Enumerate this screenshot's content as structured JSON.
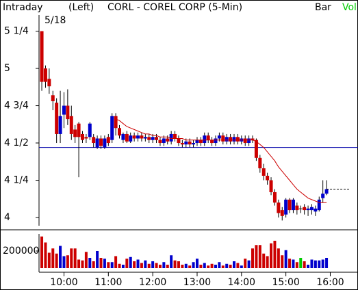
{
  "chart_data": {
    "type": "candlestick",
    "title": "CORL - COREL CORP (5-Min)",
    "header": {
      "period": "Intraday",
      "axis_side": "(Left)",
      "chart_style": "Bar",
      "volume_label": "Vol"
    },
    "date_label": "5/18",
    "up_color": "#0000cc",
    "down_color": "#cc0000",
    "flat_color": "#00cc00",
    "xlim": [
      -0.75,
      85.5
    ],
    "xticks": [
      {
        "value": 6,
        "label": "10:00"
      },
      {
        "value": 18,
        "label": "11:00"
      },
      {
        "value": 30,
        "label": "12:00"
      },
      {
        "value": 42,
        "label": "13:00"
      },
      {
        "value": 54,
        "label": "14:00"
      },
      {
        "value": 66,
        "label": "15:00"
      },
      {
        "value": 78,
        "label": "16:00"
      }
    ],
    "ylim": [
      3.945,
      5.358
    ],
    "yticks": [
      {
        "value": 5.25,
        "label": "5 1/4"
      },
      5,
      {
        "value": 4.75,
        "label": "4 3/4"
      },
      {
        "value": 4.5,
        "label": "4 1/2"
      },
      {
        "value": 4.25,
        "label": "4 1/4"
      },
      4
    ],
    "open": [
      5.25,
      5.0,
      4.93,
      4.82,
      4.77,
      4.56,
      4.69,
      4.75,
      4.68,
      4.59,
      4.63,
      4.56,
      4.54,
      4.54,
      4.54,
      4.47,
      4.53,
      4.47,
      4.54,
      4.52,
      4.68,
      4.6,
      4.52,
      4.56,
      4.51,
      4.55,
      4.53,
      4.55,
      4.53,
      4.54,
      4.52,
      4.54,
      4.52,
      4.5,
      4.53,
      4.51,
      4.56,
      4.53,
      4.5,
      4.49,
      4.51,
      4.49,
      4.5,
      4.52,
      4.5,
      4.55,
      4.52,
      4.5,
      4.53,
      4.55,
      4.51,
      4.54,
      4.51,
      4.54,
      4.51,
      4.53,
      4.5,
      4.53,
      4.52,
      4.4,
      4.33,
      4.28,
      4.25,
      4.17,
      4.1,
      4.05,
      4.02,
      4.12,
      4.05,
      4.08,
      4.06,
      4.07,
      4.05,
      4.05,
      4.04,
      4.05,
      4.13,
      4.16
    ],
    "high": [
      5.25,
      5.02,
      5.0,
      4.85,
      4.8,
      4.85,
      4.84,
      4.86,
      4.75,
      4.62,
      4.64,
      4.58,
      4.56,
      4.64,
      4.56,
      4.55,
      4.55,
      4.55,
      4.56,
      4.7,
      4.7,
      4.62,
      4.57,
      4.58,
      4.57,
      4.57,
      4.57,
      4.57,
      4.56,
      4.56,
      4.56,
      4.56,
      4.54,
      4.55,
      4.55,
      4.58,
      4.58,
      4.55,
      4.52,
      4.53,
      4.53,
      4.52,
      4.54,
      4.54,
      4.57,
      4.57,
      4.54,
      4.55,
      4.57,
      4.57,
      4.56,
      4.56,
      4.56,
      4.56,
      4.55,
      4.55,
      4.55,
      4.55,
      4.53,
      4.42,
      4.36,
      4.3,
      4.27,
      4.19,
      4.12,
      4.07,
      4.13,
      4.13,
      4.13,
      4.1,
      4.08,
      4.09,
      4.08,
      4.09,
      4.08,
      4.14,
      4.25,
      4.25
    ],
    "low": [
      4.85,
      4.87,
      4.83,
      4.72,
      4.5,
      4.5,
      4.6,
      4.62,
      4.52,
      4.5,
      4.27,
      4.5,
      4.5,
      4.52,
      4.47,
      4.46,
      4.46,
      4.46,
      4.48,
      4.5,
      4.55,
      4.53,
      4.5,
      4.5,
      4.5,
      4.51,
      4.51,
      4.51,
      4.51,
      4.5,
      4.5,
      4.5,
      4.48,
      4.48,
      4.49,
      4.49,
      4.51,
      4.48,
      4.47,
      4.47,
      4.47,
      4.47,
      4.48,
      4.48,
      4.48,
      4.5,
      4.48,
      4.48,
      4.51,
      4.49,
      4.49,
      4.49,
      4.49,
      4.49,
      4.49,
      4.48,
      4.48,
      4.5,
      4.38,
      4.3,
      4.25,
      4.22,
      4.15,
      4.08,
      4.0,
      3.98,
      4.0,
      4.03,
      4.03,
      4.02,
      4.03,
      4.02,
      4.01,
      4.02,
      4.01,
      4.04,
      4.1,
      4.15
    ],
    "close": [
      4.91,
      4.91,
      4.88,
      4.78,
      4.56,
      4.68,
      4.75,
      4.66,
      4.56,
      4.54,
      4.54,
      4.52,
      4.53,
      4.63,
      4.5,
      4.53,
      4.48,
      4.53,
      4.5,
      4.68,
      4.6,
      4.55,
      4.56,
      4.51,
      4.55,
      4.53,
      4.55,
      4.53,
      4.54,
      4.52,
      4.54,
      4.52,
      4.5,
      4.53,
      4.51,
      4.56,
      4.53,
      4.5,
      4.49,
      4.51,
      4.49,
      4.5,
      4.52,
      4.5,
      4.55,
      4.52,
      4.5,
      4.53,
      4.55,
      4.51,
      4.54,
      4.51,
      4.54,
      4.51,
      4.53,
      4.5,
      4.53,
      4.52,
      4.4,
      4.33,
      4.28,
      4.25,
      4.17,
      4.1,
      4.03,
      4.01,
      4.12,
      4.05,
      4.12,
      4.05,
      4.06,
      4.05,
      4.06,
      4.07,
      4.06,
      4.12,
      4.16,
      4.19
    ],
    "moving_average": {
      "color": "#cc0000",
      "values": [
        null,
        null,
        null,
        null,
        null,
        null,
        null,
        null,
        null,
        null,
        null,
        null,
        null,
        null,
        null,
        null,
        null,
        null,
        null,
        null,
        4.66,
        4.65,
        4.63,
        4.61,
        4.6,
        4.59,
        4.58,
        4.57,
        4.56,
        4.56,
        4.55,
        4.55,
        4.54,
        4.54,
        4.54,
        4.53,
        4.53,
        4.53,
        4.53,
        4.52,
        4.52,
        4.52,
        4.52,
        4.52,
        4.52,
        4.52,
        4.52,
        4.52,
        4.52,
        4.52,
        4.52,
        4.52,
        4.52,
        4.52,
        4.52,
        4.52,
        4.52,
        4.52,
        4.51,
        4.49,
        4.47,
        4.44,
        4.41,
        4.38,
        4.34,
        4.31,
        4.28,
        4.25,
        4.22,
        4.19,
        4.17,
        4.15,
        4.13,
        4.12,
        4.11,
        4.1,
        4.1,
        4.1
      ]
    },
    "reference_line": {
      "value": 4.47,
      "color": "#0000aa"
    },
    "last_price": 4.19,
    "volume": {
      "ylim": [
        0,
        400000
      ],
      "yticks": [
        200000
      ],
      "values": [
        370000,
        300000,
        180000,
        230000,
        170000,
        260000,
        140000,
        150000,
        230000,
        230000,
        100000,
        90000,
        190000,
        120000,
        80000,
        200000,
        120000,
        110000,
        70000,
        70000,
        140000,
        50000,
        40000,
        110000,
        130000,
        80000,
        100000,
        60000,
        90000,
        50000,
        80000,
        60000,
        40000,
        70000,
        40000,
        150000,
        90000,
        80000,
        40000,
        50000,
        30000,
        70000,
        110000,
        40000,
        60000,
        30000,
        50000,
        40000,
        70000,
        30000,
        50000,
        40000,
        80000,
        60000,
        30000,
        110000,
        90000,
        230000,
        270000,
        270000,
        170000,
        140000,
        290000,
        320000,
        230000,
        150000,
        210000,
        110000,
        100000,
        70000,
        120000,
        80000,
        40000,
        100000,
        90000,
        90000,
        100000,
        120000
      ]
    }
  }
}
